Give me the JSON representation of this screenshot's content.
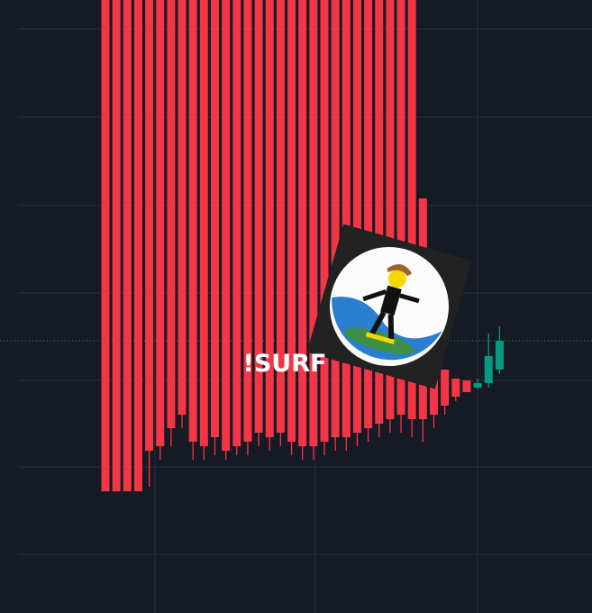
{
  "chart_data": {
    "type": "candlestick",
    "annotation": "!SURF",
    "ylim": [
      0,
      680
    ],
    "up_color": "#089981",
    "down_color": "#f23645",
    "open": [
      680,
      680,
      680,
      680,
      680,
      680,
      680,
      680,
      680,
      680,
      680,
      680,
      680,
      680,
      680,
      680,
      680,
      680,
      680,
      680,
      680,
      680,
      680,
      680,
      680,
      680,
      680,
      680,
      680,
      460,
      290,
      270,
      260,
      258,
      250,
      255,
      270
    ],
    "high": [
      680,
      680,
      680,
      680,
      680,
      680,
      680,
      680,
      680,
      680,
      680,
      680,
      680,
      680,
      680,
      680,
      680,
      680,
      680,
      680,
      680,
      680,
      680,
      680,
      680,
      680,
      680,
      680,
      680,
      460,
      290,
      270,
      260,
      258,
      260,
      310,
      318
    ],
    "low": [
      135,
      135,
      135,
      135,
      140,
      170,
      185,
      205,
      170,
      170,
      175,
      170,
      175,
      175,
      185,
      180,
      185,
      175,
      170,
      170,
      175,
      180,
      180,
      185,
      190,
      195,
      200,
      200,
      195,
      190,
      205,
      220,
      235,
      245,
      248,
      250,
      265
    ],
    "close": [
      135,
      135,
      135,
      135,
      180,
      185,
      205,
      220,
      190,
      185,
      195,
      180,
      185,
      190,
      200,
      195,
      200,
      190,
      185,
      185,
      190,
      195,
      195,
      200,
      205,
      210,
      215,
      220,
      215,
      215,
      220,
      230,
      240,
      245,
      255,
      285,
      302
    ]
  }
}
